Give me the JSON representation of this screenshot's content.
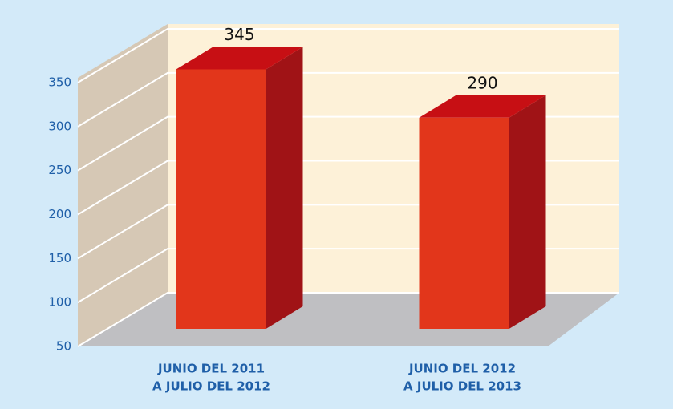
{
  "chart_data": {
    "type": "bar3d",
    "categories": [
      [
        "JUNIO DEL 2011",
        "A JULIO DEL 2012"
      ],
      [
        "JUNIO DEL 2012",
        "A JULIO DEL 2013"
      ]
    ],
    "values": [
      345,
      290
    ],
    "color": "#e2361b",
    "ylim": [
      50,
      350
    ],
    "yticks": [
      50,
      100,
      150,
      200,
      250,
      300,
      350
    ],
    "grid": true
  }
}
